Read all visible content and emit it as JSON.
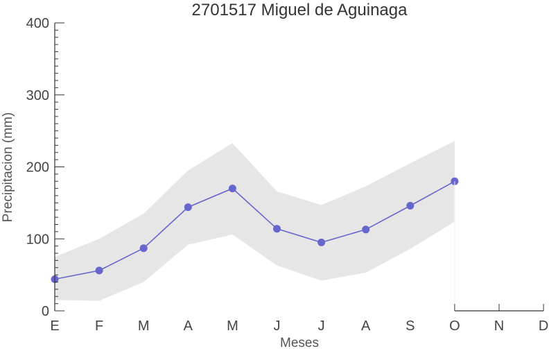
{
  "chart_data": {
    "type": "line",
    "title": "2701517 Miguel de Aguinaga",
    "xlabel": "Meses",
    "ylabel": "Precipitacion (mm)",
    "categories": [
      "E",
      "F",
      "M",
      "A",
      "M",
      "J",
      "J",
      "A",
      "S",
      "O",
      "N",
      "D"
    ],
    "ylim": [
      0,
      400
    ],
    "yticks": [
      0,
      100,
      200,
      300,
      400
    ],
    "grid": false,
    "series": [
      {
        "values": [
          44,
          56,
          87,
          144,
          170,
          114,
          95,
          113,
          146,
          180,
          null,
          null
        ],
        "color": "#6666cc"
      }
    ],
    "band": {
      "lower": [
        15,
        14,
        40,
        92,
        106,
        63,
        42,
        53,
        86,
        124,
        null,
        null
      ],
      "upper": [
        75,
        100,
        135,
        195,
        233,
        166,
        147,
        173,
        205,
        236,
        null,
        null
      ],
      "color": "#e6e6e6"
    }
  }
}
